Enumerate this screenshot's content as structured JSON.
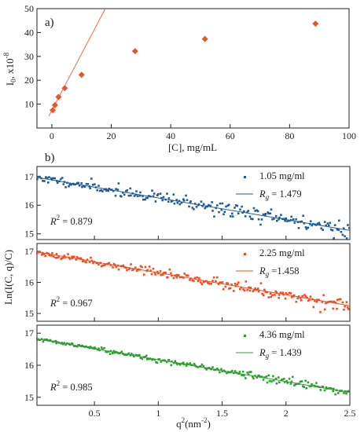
{
  "chart_data": [
    {
      "type": "scatter",
      "panel_label": "a)",
      "xlabel": "[C], mg/mL",
      "ylabel_main": "I",
      "ylabel_sub": "0",
      "ylabel_rest": ", x10",
      "ylabel_sup": "-8",
      "xlim": [
        -5,
        100
      ],
      "ylim": [
        0,
        50
      ],
      "xticks": [
        0,
        20,
        40,
        60,
        80,
        100
      ],
      "yticks": [
        10,
        20,
        30,
        40,
        50
      ],
      "grid": false,
      "marker_color": "#e8552c",
      "line_color": "#ee6b4d",
      "points": [
        {
          "x": 0.3,
          "y": 7.5
        },
        {
          "x": 1.05,
          "y": 9.6
        },
        {
          "x": 2.25,
          "y": 13.0
        },
        {
          "x": 4.36,
          "y": 16.7
        },
        {
          "x": 10.0,
          "y": 22.3
        },
        {
          "x": 28.0,
          "y": 32.2
        },
        {
          "x": 51.5,
          "y": 37.3
        },
        {
          "x": 88.7,
          "y": 43.7
        }
      ],
      "fit_line": {
        "x": [
          -1.0,
          18.0
        ],
        "y": [
          5.0,
          50.0
        ]
      }
    },
    {
      "type": "scatter",
      "panel_label": "b)",
      "xlabel_main": "q",
      "xlabel_sup": "2",
      "xlabel_rest": "(nm",
      "xlabel_sup2": "-2",
      "xlabel_end": ")",
      "ylabel": "Ln(I(C, q)/C)",
      "xlim": [
        0.05,
        2.5
      ],
      "xticks": [
        0.5,
        1,
        1.5,
        2,
        2.5
      ],
      "xtick_labels": [
        "0.5",
        "1",
        "1.5",
        "2",
        "2.5"
      ],
      "grid": false,
      "panels": [
        {
          "series_name": "1.05 mg/ml",
          "rg_label": "R",
          "rg_sub": "g",
          "rg_value": " = 1.479",
          "r2_label": "R",
          "r2_sup": "2",
          "r2_value": " = 0.879",
          "color": "#1f5c99",
          "ylim": [
            14.8,
            17.35
          ],
          "yticks": [
            15,
            16,
            17
          ],
          "fit": {
            "x": [
              0.05,
              2.5
            ],
            "y": [
              16.97,
              15.12
            ]
          },
          "noise": 0.13,
          "n_points": 230,
          "seed": 11
        },
        {
          "series_name": "2.25 mg/ml",
          "rg_label": "R",
          "rg_sub": "g",
          "rg_value": " =1.458",
          "r2_label": "R",
          "r2_sup": "2",
          "r2_value": " = 0.967",
          "color": "#f24c1f",
          "ylim": [
            14.75,
            17.25
          ],
          "yticks": [
            15,
            16,
            17
          ],
          "fit": {
            "x": [
              0.05,
              2.5
            ],
            "y": [
              16.98,
              15.25
            ]
          },
          "noise": 0.08,
          "n_points": 230,
          "seed": 23
        },
        {
          "series_name": "4.36 mg/ml",
          "rg_label": "R",
          "rg_sub": "g",
          "rg_value": " = 1.439",
          "r2_label": "R",
          "r2_sup": "2",
          "r2_value": " = 0.985",
          "color": "#2ca02c",
          "ylim": [
            14.75,
            17.25
          ],
          "yticks": [
            15,
            16,
            17
          ],
          "fit": {
            "x": [
              0.05,
              2.5
            ],
            "y": [
              16.82,
              15.15
            ]
          },
          "noise": 0.05,
          "n_points": 230,
          "seed": 37
        }
      ]
    }
  ]
}
